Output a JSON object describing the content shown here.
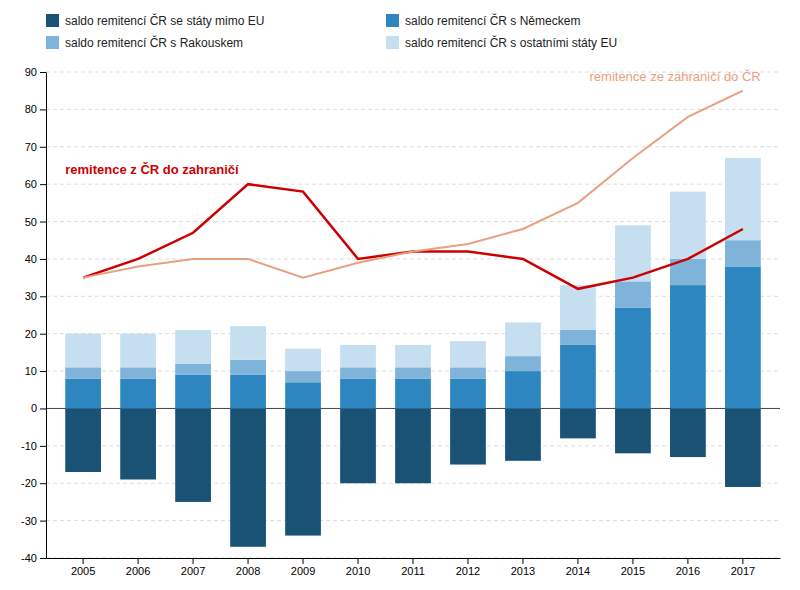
{
  "chart_data": {
    "type": "bar",
    "stacked": true,
    "grid": true,
    "legend": "top-left",
    "categories": [
      "2005",
      "2006",
      "2007",
      "2008",
      "2009",
      "2010",
      "2011",
      "2012",
      "2013",
      "2014",
      "2015",
      "2016",
      "2017"
    ],
    "series": [
      {
        "name": "saldo remitencí ČR se státy mimo EU",
        "type": "bar",
        "color": "#1a5276",
        "values": [
          -17,
          -19,
          -25,
          -37,
          -34,
          -20,
          -20,
          -15,
          -14,
          -8,
          -12,
          -13,
          -21
        ]
      },
      {
        "name": "saldo remitencí ČR s Německem",
        "type": "bar",
        "color": "#2e86c1",
        "values": [
          8,
          8,
          9,
          9,
          7,
          8,
          8,
          8,
          10,
          17,
          27,
          33,
          38
        ]
      },
      {
        "name": "saldo remitencí ČR s Rakouskem",
        "type": "bar",
        "color": "#7fb3d9",
        "values": [
          3,
          3,
          3,
          4,
          3,
          3,
          3,
          3,
          4,
          4,
          7,
          7,
          7
        ]
      },
      {
        "name": "saldo remitencí ČR s ostatními státy EU",
        "type": "bar",
        "color": "#c5def0",
        "values": [
          9,
          9,
          9,
          9,
          6,
          6,
          6,
          7,
          9,
          12,
          15,
          18,
          22
        ]
      },
      {
        "name": "remitence z ČR do zahraničí",
        "type": "line",
        "color": "#cc0000",
        "values": [
          35,
          40,
          47,
          60,
          58,
          40,
          42,
          42,
          40,
          32,
          35,
          40,
          48
        ]
      },
      {
        "name": "remitence ze zahraničí do ČR",
        "type": "line",
        "color": "#e8a080",
        "values": [
          35,
          38,
          40,
          40,
          35,
          39,
          42,
          44,
          48,
          55,
          67,
          78,
          85
        ]
      }
    ],
    "ylim": [
      -40,
      90
    ],
    "yticks": [
      -40,
      -30,
      -20,
      -10,
      0,
      10,
      20,
      30,
      40,
      50,
      60,
      70,
      80,
      90
    ]
  }
}
